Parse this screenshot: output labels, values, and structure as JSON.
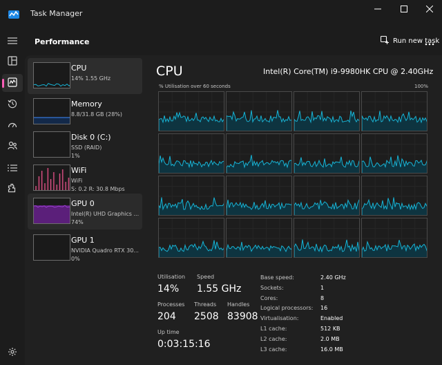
{
  "window": {
    "title": "Task Manager",
    "controls": {
      "minimize": "minimize-icon",
      "maximize": "maximize-icon",
      "close": "close-icon"
    }
  },
  "rail": {
    "menu_icon": "hamburger-icon",
    "items": [
      {
        "id": "processes",
        "icon": "processes-icon"
      },
      {
        "id": "performance",
        "icon": "performance-icon",
        "active": true
      },
      {
        "id": "app-history",
        "icon": "history-icon"
      },
      {
        "id": "startup-apps",
        "icon": "speedometer-icon"
      },
      {
        "id": "users",
        "icon": "users-icon"
      },
      {
        "id": "details",
        "icon": "list-icon"
      },
      {
        "id": "services",
        "icon": "puzzle-icon"
      }
    ],
    "settings_icon": "gear-icon"
  },
  "header": {
    "title": "Performance",
    "run_new_task": "Run new task",
    "more_icon": "ellipsis-icon"
  },
  "devices": [
    {
      "name": "CPU",
      "sub": "14%  1.55 GHz",
      "sub2": "",
      "state": "selected",
      "color": "#17b4d6"
    },
    {
      "name": "Memory",
      "sub": "8.8/31.8 GB (28%)",
      "sub2": "",
      "state": "",
      "color": "#3d8bff"
    },
    {
      "name": "Disk 0 (C:)",
      "sub": "SSD (RAID)",
      "sub2": "1%",
      "state": "",
      "color": "#4caf50"
    },
    {
      "name": "WiFi",
      "sub": "WiFi",
      "sub2": "S: 0.2  R: 30.8 Mbps",
      "state": "",
      "color": "#e05a8a"
    },
    {
      "name": "GPU 0",
      "sub": "Intel(R) UHD Graphics ...",
      "sub2": "74%",
      "state": "hover",
      "color": "#9b3fd1"
    },
    {
      "name": "GPU 1",
      "sub": "NVIDIA Quadro RTX 30...",
      "sub2": "0%",
      "state": "",
      "color": "#9b3fd1"
    }
  ],
  "cpu": {
    "title": "CPU",
    "model": "Intel(R) Core(TM) i9-9980HK CPU @ 2.40GHz",
    "graph_caption": "% Utilisation over 60 seconds",
    "graph_max": "100%",
    "line_color": "#17b4d6",
    "fill_color": "#0e3440",
    "utilisation_label": "Utilisation",
    "utilisation": "14%",
    "speed_label": "Speed",
    "speed": "1.55 GHz",
    "processes_label": "Processes",
    "processes": "204",
    "threads_label": "Threads",
    "threads": "2508",
    "handles_label": "Handles",
    "handles": "83908",
    "uptime_label": "Up time",
    "uptime": "0:03:15:16",
    "specs": [
      {
        "label": "Base speed:",
        "value": "2.40 GHz"
      },
      {
        "label": "Sockets:",
        "value": "1"
      },
      {
        "label": "Cores:",
        "value": "8"
      },
      {
        "label": "Logical processors:",
        "value": "16"
      },
      {
        "label": "Virtualisation:",
        "value": "Enabled"
      },
      {
        "label": "L1 cache:",
        "value": "512 KB"
      },
      {
        "label": "L2 cache:",
        "value": "2.0 MB"
      },
      {
        "label": "L3 cache:",
        "value": "16.0 MB"
      }
    ]
  }
}
